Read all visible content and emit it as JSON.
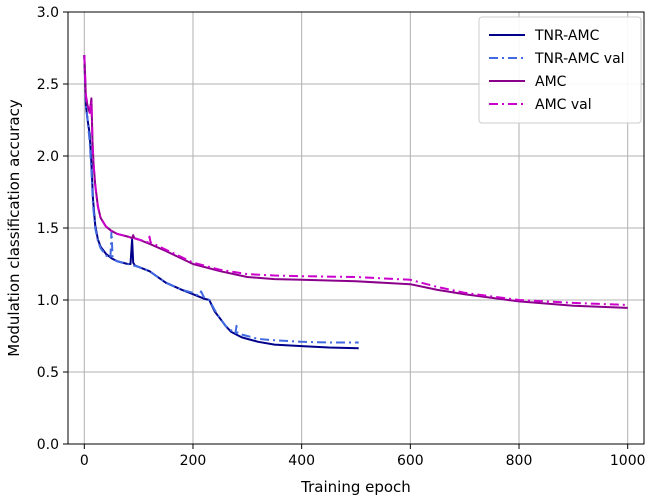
{
  "chart_data": {
    "type": "line",
    "title": "",
    "xlabel": "Training epoch",
    "ylabel": "Modulation classification accuracy",
    "xlim": [
      -30,
      1030
    ],
    "ylim": [
      0.0,
      3.0
    ],
    "xticks": [
      "0",
      "200",
      "400",
      "600",
      "800",
      "1000"
    ],
    "yticks": [
      "0.0",
      "0.5",
      "1.0",
      "1.5",
      "2.0",
      "2.5",
      "3.0"
    ],
    "grid": true,
    "legend_position": "top-right",
    "series": [
      {
        "name": "TNR-AMC",
        "color": "#00008b",
        "style": "solid",
        "x": [
          0,
          3,
          6,
          10,
          13,
          16,
          20,
          25,
          30,
          40,
          50,
          60,
          70,
          80,
          85,
          88,
          90,
          93,
          100,
          120,
          150,
          180,
          200,
          220,
          230,
          235,
          240,
          250,
          260,
          270,
          280,
          290,
          300,
          320,
          350,
          400,
          450,
          505
        ],
        "y": [
          2.7,
          2.35,
          2.25,
          2.15,
          1.95,
          1.7,
          1.52,
          1.42,
          1.37,
          1.32,
          1.29,
          1.27,
          1.26,
          1.25,
          1.25,
          1.42,
          1.26,
          1.24,
          1.23,
          1.2,
          1.12,
          1.07,
          1.04,
          1.01,
          1.0,
          0.96,
          0.92,
          0.87,
          0.82,
          0.78,
          0.76,
          0.74,
          0.73,
          0.71,
          0.69,
          0.68,
          0.67,
          0.665
        ]
      },
      {
        "name": "TNR-AMC val",
        "color": "#4169e1",
        "style": "dashdot",
        "x": [
          0,
          3,
          6,
          10,
          13,
          16,
          20,
          25,
          30,
          40,
          48,
          50,
          52,
          60,
          70,
          80,
          90,
          100,
          120,
          150,
          180,
          200,
          210,
          215,
          220,
          230,
          240,
          250,
          260,
          270,
          278,
          280,
          282,
          290,
          300,
          320,
          350,
          400,
          450,
          505
        ],
        "y": [
          2.7,
          2.35,
          2.25,
          2.1,
          1.9,
          1.66,
          1.5,
          1.41,
          1.36,
          1.31,
          1.29,
          1.48,
          1.29,
          1.27,
          1.26,
          1.25,
          1.24,
          1.23,
          1.2,
          1.12,
          1.07,
          1.05,
          1.03,
          1.06,
          1.02,
          1.0,
          0.93,
          0.87,
          0.82,
          0.79,
          0.77,
          0.82,
          0.77,
          0.76,
          0.75,
          0.73,
          0.72,
          0.71,
          0.705,
          0.705
        ]
      },
      {
        "name": "AMC",
        "color": "#8b008b",
        "style": "solid",
        "x": [
          0,
          3,
          6,
          10,
          13,
          15,
          17,
          20,
          25,
          30,
          40,
          50,
          60,
          70,
          80,
          88,
          90,
          92,
          100,
          120,
          150,
          200,
          250,
          300,
          350,
          400,
          500,
          600,
          650,
          700,
          800,
          900,
          1000
        ],
        "y": [
          2.7,
          2.4,
          2.35,
          2.3,
          2.4,
          2.1,
          1.95,
          1.8,
          1.65,
          1.57,
          1.51,
          1.48,
          1.46,
          1.45,
          1.44,
          1.43,
          1.45,
          1.43,
          1.42,
          1.39,
          1.34,
          1.25,
          1.2,
          1.16,
          1.145,
          1.14,
          1.13,
          1.11,
          1.07,
          1.04,
          0.99,
          0.96,
          0.945
        ]
      },
      {
        "name": "AMC val",
        "color": "#cc00cc",
        "style": "dashdot",
        "x": [
          0,
          3,
          6,
          10,
          13,
          15,
          17,
          20,
          25,
          30,
          40,
          50,
          60,
          70,
          80,
          90,
          100,
          118,
          120,
          122,
          150,
          200,
          250,
          300,
          350,
          400,
          500,
          600,
          620,
          650,
          700,
          800,
          900,
          1000
        ],
        "y": [
          2.7,
          2.42,
          2.36,
          2.3,
          2.38,
          2.1,
          1.95,
          1.8,
          1.65,
          1.57,
          1.51,
          1.48,
          1.46,
          1.45,
          1.44,
          1.43,
          1.42,
          1.4,
          1.44,
          1.4,
          1.35,
          1.26,
          1.21,
          1.18,
          1.17,
          1.165,
          1.16,
          1.14,
          1.12,
          1.09,
          1.05,
          1.0,
          0.98,
          0.965
        ]
      }
    ]
  }
}
